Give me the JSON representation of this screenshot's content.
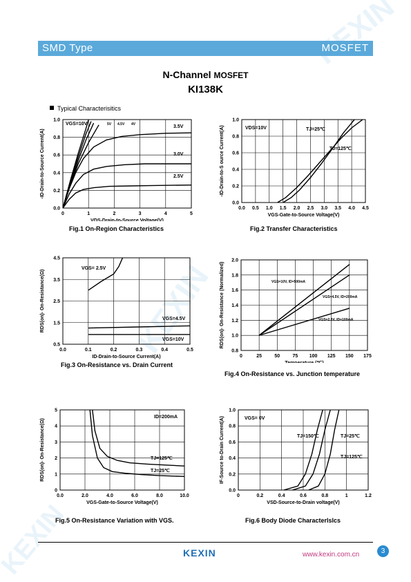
{
  "header": {
    "left": "SMD Type",
    "right": "MOSFET"
  },
  "title": {
    "line1_main": "N-Channel",
    "line1_sub": "MOSFET",
    "line2": "KI138K"
  },
  "section": "Typical  Characterisitics",
  "footer": {
    "logo": "KEXIN",
    "url": "www.kexin.com.cn",
    "page": "3"
  },
  "watermark": "KEXIN",
  "captions": {
    "fig1": "Fig.1 On-Region Characteristics",
    "fig2": "Fig.2 Transfer Characteristics",
    "fig3": "Fig.3 On-Resistance vs. Drain Current",
    "fig4": "Fig.4 On-Resistance vs. Junction temperature",
    "fig5": "Fig.5 On-Resistance Variation with VGS.",
    "fig6": "Fig.6 Body Diode Characterlslcs"
  },
  "chart_data": [
    {
      "id": "fig1",
      "type": "line",
      "xlabel": "VDS-Drain-to-Source Voltage(V)",
      "ylabel": "-ID-Drain-to-Source Current(A)",
      "xlim": [
        0,
        5
      ],
      "ylim": [
        0,
        1.0
      ],
      "xticks": [
        "0",
        "1",
        "2",
        "3",
        "4",
        "5"
      ],
      "yticks": [
        "0.0",
        "0.2",
        "0.4",
        "0.6",
        "0.8",
        "1.0"
      ],
      "annotations": [
        "VGS=10V",
        "5V",
        "4.5V",
        "4V",
        "3.5V",
        "3.0V",
        "2.5V"
      ],
      "series": [
        {
          "name": "VGS=10V",
          "x": [
            0,
            0.3,
            0.6,
            0.9,
            1.0
          ],
          "y": [
            0,
            0.32,
            0.62,
            0.9,
            1.0
          ]
        },
        {
          "name": "5V",
          "x": [
            0,
            0.3,
            0.6,
            0.9,
            1.1
          ],
          "y": [
            0,
            0.3,
            0.58,
            0.84,
            0.98
          ]
        },
        {
          "name": "4.5V",
          "x": [
            0,
            0.3,
            0.6,
            0.9,
            1.2
          ],
          "y": [
            0,
            0.28,
            0.54,
            0.77,
            0.96
          ]
        },
        {
          "name": "4V",
          "x": [
            0,
            0.3,
            0.6,
            1.0,
            1.4
          ],
          "y": [
            0,
            0.27,
            0.5,
            0.74,
            0.94
          ]
        },
        {
          "name": "3.5V",
          "x": [
            0,
            0.25,
            0.5,
            0.8,
            1.2,
            1.7,
            2.3,
            3.0,
            4.0,
            5.0
          ],
          "y": [
            0,
            0.22,
            0.4,
            0.56,
            0.69,
            0.77,
            0.81,
            0.83,
            0.845,
            0.85
          ]
        },
        {
          "name": "3.0V",
          "x": [
            0,
            0.25,
            0.5,
            0.8,
            1.2,
            1.7,
            2.4,
            3.2,
            4.0,
            5.0
          ],
          "y": [
            0,
            0.16,
            0.28,
            0.38,
            0.44,
            0.47,
            0.49,
            0.5,
            0.5,
            0.5
          ]
        },
        {
          "name": "2.5V",
          "x": [
            0,
            0.25,
            0.5,
            0.8,
            1.2,
            1.8,
            2.6,
            3.5,
            5.0
          ],
          "y": [
            0,
            0.1,
            0.17,
            0.21,
            0.23,
            0.245,
            0.25,
            0.255,
            0.26
          ]
        }
      ]
    },
    {
      "id": "fig2",
      "type": "line",
      "xlabel": "VGS-Gate-to-Source Voltage(V)",
      "ylabel": "-ID-Drain-to-S ource Current(A)",
      "xlim": [
        0,
        4.5
      ],
      "ylim": [
        0,
        1.0
      ],
      "xticks": [
        "0.0",
        "0.5",
        "1.0",
        "1.5",
        "2.0",
        "2.5",
        "3.0",
        "3.5",
        "4.0",
        "4.5"
      ],
      "yticks": [
        "0.0",
        "0.2",
        "0.4",
        "0.6",
        "0.8",
        "1.0"
      ],
      "annotations": [
        "VDS=10V",
        "TJ=25℃",
        "TJ=125℃"
      ],
      "series": [
        {
          "name": "TJ=25℃",
          "x": [
            1.5,
            1.8,
            2.1,
            2.5,
            2.9,
            3.3,
            3.7,
            4.1
          ],
          "y": [
            0,
            0.06,
            0.15,
            0.3,
            0.47,
            0.65,
            0.84,
            1.0
          ]
        },
        {
          "name": "TJ=125℃",
          "x": [
            1.3,
            1.6,
            2.0,
            2.4,
            2.8,
            3.2,
            3.6,
            4.0,
            4.4
          ],
          "y": [
            0,
            0.06,
            0.18,
            0.32,
            0.47,
            0.62,
            0.77,
            0.9,
            1.0
          ]
        }
      ]
    },
    {
      "id": "fig3",
      "type": "line",
      "xlabel": "ID-Drain-to-Source Current(A)",
      "ylabel": "RDS(on)- On-Resistance(Ω)",
      "xlim": [
        0,
        0.5
      ],
      "ylim": [
        0.5,
        4.5
      ],
      "xticks": [
        "0.0",
        "0.1",
        "0.2",
        "0.3",
        "0.4",
        "0.5"
      ],
      "yticks": [
        "0.5",
        "1.5",
        "2.5",
        "3.5",
        "4.5"
      ],
      "annotations": [
        "VGS= 2.5V",
        "VGS=4.5V",
        "VGS=10V"
      ],
      "series": [
        {
          "name": "VGS= 2.5V",
          "x": [
            0.1,
            0.15,
            0.2,
            0.22,
            0.235
          ],
          "y": [
            3.0,
            3.4,
            3.75,
            4.1,
            4.5
          ]
        },
        {
          "name": "VGS=4.5V",
          "x": [
            0.1,
            0.3,
            0.5
          ],
          "y": [
            1.25,
            1.3,
            1.35
          ]
        },
        {
          "name": "VGS=10V",
          "x": [
            0.1,
            0.3,
            0.5
          ],
          "y": [
            0.95,
            0.95,
            0.95
          ]
        }
      ]
    },
    {
      "id": "fig4",
      "type": "line",
      "xlabel": "Temperature (℃)",
      "ylabel": "RDS(on)- On-Resistance (Normalized)",
      "xlim": [
        0,
        175
      ],
      "ylim": [
        0.8,
        2.0
      ],
      "xticks": [
        "0",
        "25",
        "50",
        "75",
        "100",
        "125",
        "150",
        "175"
      ],
      "yticks": [
        "0.8",
        "1.0",
        "1.2",
        "1.4",
        "1.6",
        "1.8",
        "2.0"
      ],
      "annotations": [
        "VGS=10V, ID=500mA",
        "VGS=4.5V, ID=200mA",
        "VGS=2.5V, ID=100mA"
      ],
      "series": [
        {
          "name": "VGS=10V, ID=500mA",
          "x": [
            25,
            150
          ],
          "y": [
            1.0,
            1.94
          ]
        },
        {
          "name": "VGS=4.5V, ID=200mA",
          "x": [
            25,
            150
          ],
          "y": [
            1.0,
            1.8
          ]
        },
        {
          "name": "VGS=2.5V, ID=100mA",
          "x": [
            25,
            150
          ],
          "y": [
            1.0,
            1.36
          ]
        }
      ]
    },
    {
      "id": "fig5",
      "type": "line",
      "xlabel": "VGS-Gate-to-Source Voltage(V)",
      "ylabel": "RDS(on)- On-Resistance(Ω)",
      "xlim": [
        0,
        10
      ],
      "ylim": [
        0,
        5
      ],
      "xticks": [
        "0.0",
        "2.0",
        "4.0",
        "6.0",
        "8.0",
        "10.0"
      ],
      "yticks": [
        "0",
        "1",
        "2",
        "3",
        "4",
        "5"
      ],
      "annotations": [
        "ID=200mA",
        "TJ=125℃",
        "TJ=25℃"
      ],
      "series": [
        {
          "name": "TJ=125℃",
          "x": [
            2.6,
            2.8,
            3.2,
            3.8,
            4.6,
            5.6,
            7.0,
            8.5,
            10.0
          ],
          "y": [
            5.0,
            3.7,
            2.6,
            2.1,
            1.85,
            1.7,
            1.62,
            1.56,
            1.5
          ]
        },
        {
          "name": "TJ=25℃",
          "x": [
            2.4,
            2.6,
            3.0,
            3.5,
            4.2,
            5.2,
            6.5,
            8.0,
            10.0
          ],
          "y": [
            5.0,
            3.4,
            2.0,
            1.4,
            1.15,
            1.05,
            0.97,
            0.9,
            0.85
          ]
        }
      ]
    },
    {
      "id": "fig6",
      "type": "line",
      "xlabel": "VSD-Source-to-Drain voltage(V)",
      "ylabel": "IF-Source to-Drain Current(A)",
      "xlim": [
        0,
        1.2
      ],
      "ylim": [
        0,
        1.0
      ],
      "xticks": [
        "0",
        "0.2",
        "0.4",
        "0.6",
        "0.8",
        "1",
        "1.2"
      ],
      "yticks": [
        "0.0",
        "0.2",
        "0.4",
        "0.6",
        "0.8",
        "1.0"
      ],
      "annotations": [
        "VGS= 0V",
        "TJ=150℃",
        "TJ=25℃",
        "TJ=125℃"
      ],
      "series": [
        {
          "name": "TJ=150℃",
          "x": [
            0.42,
            0.55,
            0.62,
            0.68,
            0.73,
            0.78
          ],
          "y": [
            0,
            0.05,
            0.2,
            0.45,
            0.75,
            1.0
          ]
        },
        {
          "name": "TJ=125℃",
          "x": [
            0.5,
            0.62,
            0.69,
            0.75,
            0.8,
            0.85
          ],
          "y": [
            0,
            0.05,
            0.2,
            0.45,
            0.75,
            1.0
          ]
        },
        {
          "name": "TJ=25℃",
          "x": [
            0.65,
            0.74,
            0.8,
            0.85,
            0.89,
            0.93
          ],
          "y": [
            0,
            0.05,
            0.2,
            0.45,
            0.75,
            1.0
          ]
        }
      ]
    }
  ]
}
